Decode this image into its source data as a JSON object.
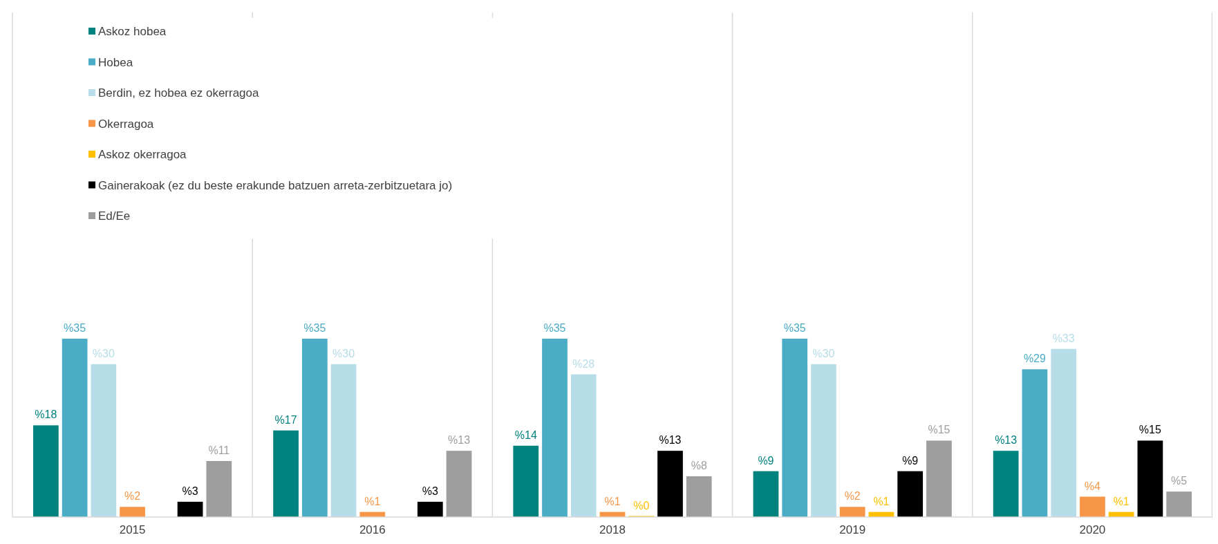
{
  "chart_data": {
    "type": "bar",
    "categories": [
      "2015",
      "2016",
      "2018",
      "2019",
      "2020"
    ],
    "series": [
      {
        "name": "Askoz hobea",
        "color": "#00827f",
        "values": [
          18,
          17,
          14,
          9,
          13
        ],
        "value_labels": [
          "%18",
          "%17",
          "%14",
          "%9",
          "%13"
        ]
      },
      {
        "name": "Hobea",
        "color": "#4bacc6",
        "values": [
          35,
          35,
          35,
          35,
          29
        ],
        "value_labels": [
          "%35",
          "%35",
          "%35",
          "%35",
          "%29"
        ]
      },
      {
        "name": "Berdin, ez hobea ez okerragoa",
        "color": "#b7dde8",
        "values": [
          30,
          30,
          28,
          30,
          33
        ],
        "value_labels": [
          "%30",
          "%30",
          "%28",
          "%30",
          "%33"
        ]
      },
      {
        "name": "Okerragoa",
        "color": "#f79646",
        "values": [
          2,
          1,
          1,
          2,
          4
        ],
        "value_labels": [
          "%2",
          "%1",
          "%1",
          "%2",
          "%4"
        ]
      },
      {
        "name": "Askoz okerragoa",
        "color": "#ffc000",
        "values": [
          null,
          null,
          0,
          1,
          1
        ],
        "value_labels": [
          null,
          null,
          "%0",
          "%1",
          "%1"
        ]
      },
      {
        "name": "Gainerakoak (ez du beste erakunde batzuen arreta-zerbitzuetara jo)",
        "color": "#000000",
        "values": [
          3,
          3,
          13,
          9,
          15
        ],
        "value_labels": [
          "%3",
          "%3",
          "%13",
          "%9",
          "%15"
        ]
      },
      {
        "name": "Ed/Ee",
        "color": "#9e9e9e",
        "values": [
          11,
          13,
          8,
          15,
          5
        ],
        "value_labels": [
          "%11",
          "%13",
          "%8",
          "%15",
          "%5"
        ]
      }
    ],
    "grid": "x",
    "legend": "top left"
  }
}
